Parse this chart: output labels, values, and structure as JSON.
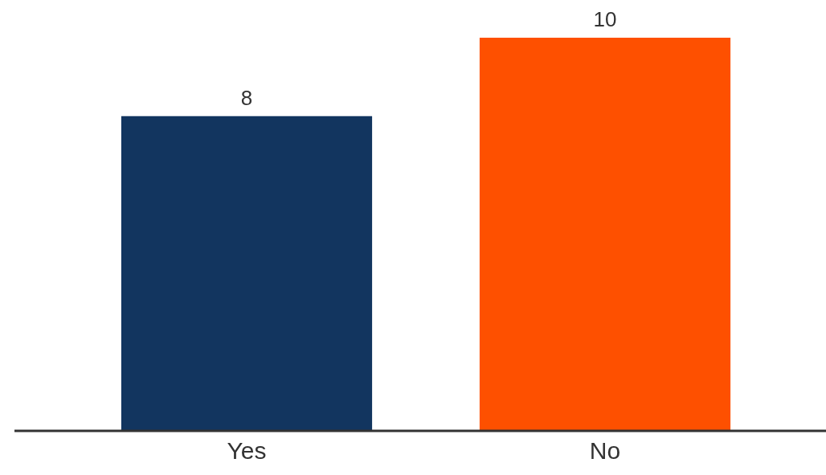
{
  "chart_data": {
    "type": "bar",
    "categories": [
      "Yes",
      "No"
    ],
    "values": [
      8,
      10
    ],
    "colors": [
      "#12355f",
      "#fe5000"
    ],
    "ylim": [
      0,
      10
    ],
    "data_labels": true,
    "grid": false,
    "legend": false
  }
}
